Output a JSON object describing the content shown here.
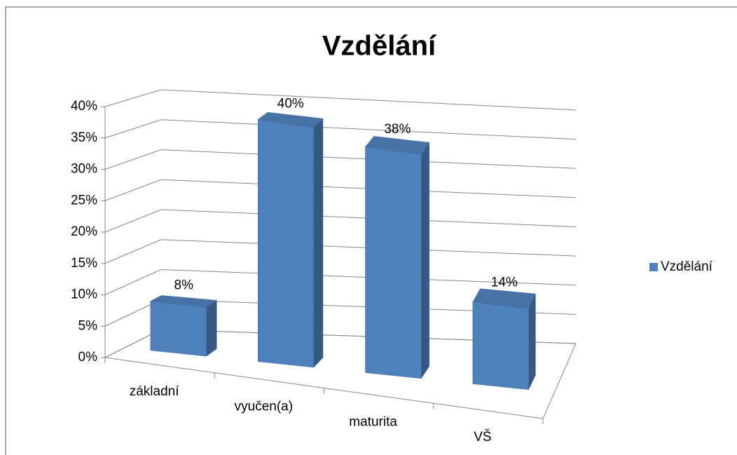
{
  "chart_data": {
    "type": "bar3d",
    "title": "Vzdělání",
    "categories": [
      "základní",
      "vyučen(a)",
      "maturita",
      "VŠ"
    ],
    "series": [
      {
        "name": "Vzdělání",
        "color": "#4f81bd",
        "values": [
          8,
          40,
          38,
          14
        ],
        "value_labels": [
          "8%",
          "40%",
          "38%",
          "14%"
        ]
      }
    ],
    "ylim": [
      0,
      40
    ],
    "yticks": [
      {
        "value": 0,
        "label": "0%"
      },
      {
        "value": 5,
        "label": "5%"
      },
      {
        "value": 10,
        "label": "10%"
      },
      {
        "value": 15,
        "label": "15%"
      },
      {
        "value": 20,
        "label": "20%"
      },
      {
        "value": 25,
        "label": "25%"
      },
      {
        "value": 30,
        "label": "30%"
      },
      {
        "value": 35,
        "label": "35%"
      },
      {
        "value": 40,
        "label": "40%"
      }
    ],
    "grid": true,
    "legend": "right"
  }
}
